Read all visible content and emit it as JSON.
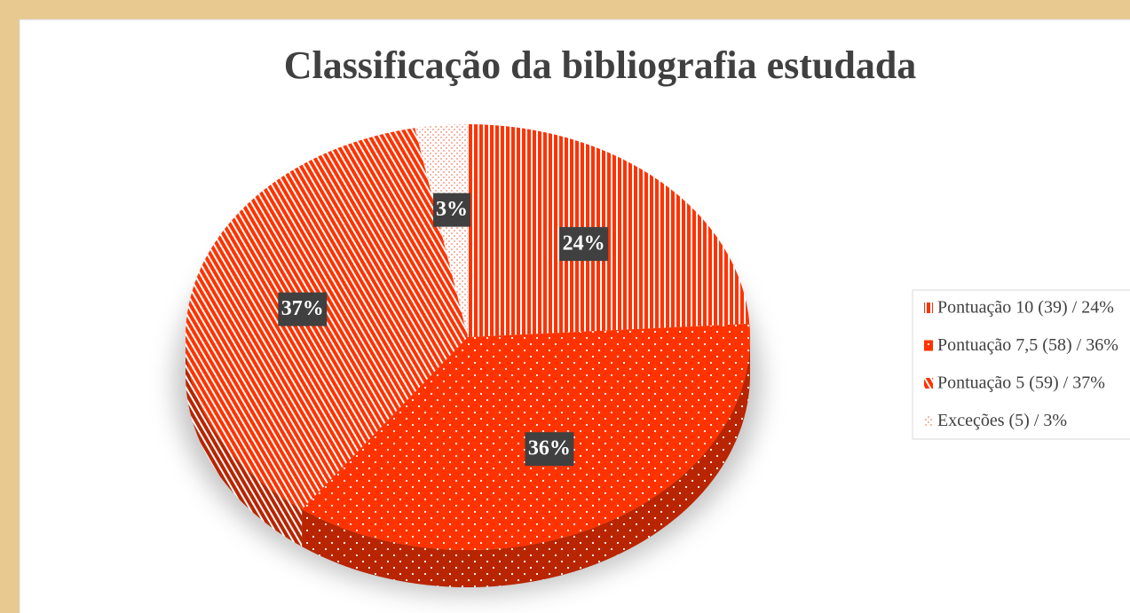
{
  "chart_data": {
    "type": "pie",
    "title": "Classificação da bibliografia estudada",
    "categories": [
      "Pontuação 10 (39) / 24%",
      "Pontuação 7,5 (58) / 36%",
      "Pontuação 5 (59) / 37%",
      "Exceções (5) / 3%"
    ],
    "values": [
      24,
      36,
      37,
      3
    ],
    "value_labels": [
      "24%",
      "36%",
      "37%",
      "3%"
    ],
    "colors": [
      "#ff3300",
      "#ff3300",
      "#ff3300",
      "#f4a08a"
    ],
    "legend": "right"
  }
}
